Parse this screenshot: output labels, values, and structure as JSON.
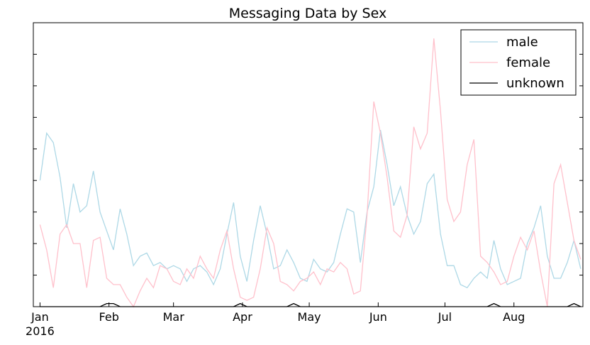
{
  "chart_data": {
    "type": "line",
    "title": "Messaging Data by Sex",
    "x": [
      0,
      3,
      6,
      9,
      12,
      15,
      18,
      21,
      24,
      27,
      30,
      33,
      36,
      39,
      42,
      45,
      48,
      51,
      54,
      57,
      60,
      63,
      66,
      69,
      72,
      75,
      78,
      81,
      84,
      87,
      90,
      93,
      96,
      99,
      102,
      105,
      108,
      111,
      114,
      117,
      120,
      123,
      126,
      129,
      132,
      135,
      138,
      141,
      144,
      147,
      150,
      153,
      156,
      159,
      162,
      165,
      168,
      171,
      174,
      177,
      180,
      183,
      186,
      189,
      192,
      195,
      198,
      201,
      204,
      207,
      210,
      213,
      216,
      219,
      222,
      225,
      228,
      231,
      234,
      237,
      240,
      243
    ],
    "series": [
      {
        "name": "male",
        "color": "#add8e6",
        "values": [
          4.0,
          5.5,
          5.2,
          4.1,
          2.5,
          3.9,
          3.0,
          3.2,
          4.3,
          3.0,
          2.4,
          1.8,
          3.1,
          2.3,
          1.3,
          1.6,
          1.7,
          1.3,
          1.4,
          1.2,
          1.3,
          1.2,
          0.8,
          1.2,
          1.3,
          1.1,
          0.7,
          1.2,
          2.3,
          3.3,
          1.6,
          0.8,
          2.1,
          3.2,
          2.3,
          1.2,
          1.3,
          1.8,
          1.4,
          0.9,
          0.8,
          1.5,
          1.2,
          1.1,
          1.4,
          2.3,
          3.1,
          3.0,
          1.4,
          3.0,
          3.8,
          5.6,
          4.5,
          3.2,
          3.8,
          2.9,
          2.3,
          2.7,
          3.9,
          4.2,
          2.3,
          1.3,
          1.3,
          0.7,
          0.6,
          0.9,
          1.1,
          0.9,
          2.1,
          1.2,
          0.7,
          0.8,
          0.9,
          2.0,
          2.5,
          3.2,
          1.6,
          0.9,
          0.9,
          1.4,
          2.1,
          1.2
        ]
      },
      {
        "name": "female",
        "color": "#ffc0cb",
        "values": [
          2.6,
          1.8,
          0.6,
          2.3,
          2.6,
          2.0,
          2.0,
          0.6,
          2.1,
          2.2,
          0.9,
          0.7,
          0.7,
          0.3,
          0.0,
          0.5,
          0.9,
          0.6,
          1.3,
          1.2,
          0.8,
          0.7,
          1.2,
          0.9,
          1.6,
          1.2,
          0.9,
          1.8,
          2.4,
          1.2,
          0.3,
          0.2,
          0.3,
          1.2,
          2.5,
          2.0,
          0.8,
          0.7,
          0.5,
          0.8,
          0.9,
          1.1,
          0.7,
          1.2,
          1.1,
          1.4,
          1.2,
          0.4,
          0.5,
          2.9,
          6.5,
          5.5,
          4.1,
          2.4,
          2.2,
          2.9,
          5.7,
          5.0,
          5.5,
          8.5,
          6.2,
          3.4,
          2.7,
          3.0,
          4.5,
          5.3,
          1.6,
          1.4,
          1.1,
          0.7,
          0.8,
          1.6,
          2.2,
          1.8,
          2.4,
          1.1,
          0.0,
          3.9,
          4.5,
          3.3,
          2.1,
          1.5
        ]
      },
      {
        "name": "unknown",
        "color": "#000000",
        "values": [
          0,
          0,
          0,
          0,
          0,
          0,
          0,
          0,
          0,
          0,
          0.1,
          0.1,
          0,
          0,
          0,
          0,
          0,
          0,
          0,
          0,
          0,
          0,
          0,
          0,
          0,
          0,
          0,
          0,
          0,
          0,
          0.1,
          0,
          0,
          0,
          0,
          0,
          0,
          0,
          0.1,
          0,
          0,
          0,
          0,
          0,
          0,
          0,
          0,
          0,
          0,
          0,
          0,
          0,
          0,
          0,
          0,
          0,
          0,
          0,
          0,
          0,
          0,
          0,
          0,
          0,
          0,
          0,
          0,
          0,
          0.1,
          0,
          0,
          0,
          0,
          0,
          0,
          0,
          0,
          0,
          0,
          0,
          0.1,
          0
        ]
      }
    ],
    "xlim": [
      -3,
      244
    ],
    "xticks": [
      {
        "value": 0,
        "label": "Jan"
      },
      {
        "value": 31,
        "label": "Feb"
      },
      {
        "value": 60,
        "label": "Mar"
      },
      {
        "value": 91,
        "label": "Apr"
      },
      {
        "value": 121,
        "label": "May"
      },
      {
        "value": 152,
        "label": "Jun"
      },
      {
        "value": 182,
        "label": "Jul"
      },
      {
        "value": 213,
        "label": "Aug"
      }
    ],
    "x_year": "2016",
    "ylim": [
      0,
      9
    ],
    "yticks": [
      0,
      1,
      2,
      3,
      4,
      5,
      6,
      7,
      8,
      9
    ],
    "legend": "upper right"
  }
}
